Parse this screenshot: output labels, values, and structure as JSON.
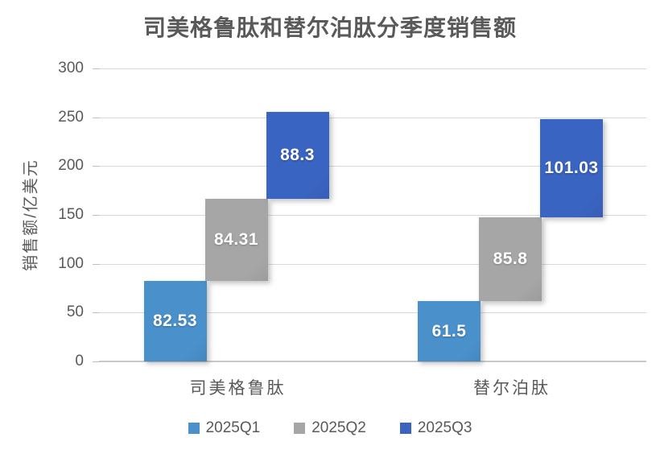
{
  "title": "司美格鲁肽和替尔泊肽分季度销售额",
  "chart_data": {
    "type": "bar",
    "subtype": "waterfall-staircase-stacked",
    "title": "司美格鲁肽和替尔泊肽分季度销售额",
    "categories": [
      "司美格鲁肽",
      "替尔泊肽"
    ],
    "series": [
      {
        "name": "2025Q1",
        "color": "#4a90cb",
        "values": [
          82.53,
          61.5
        ],
        "labels": [
          "82.53",
          "61.5"
        ]
      },
      {
        "name": "2025Q2",
        "color": "#a6a6a6",
        "values": [
          84.31,
          85.8
        ],
        "labels": [
          "84.31",
          "85.8"
        ]
      },
      {
        "name": "2025Q3",
        "color": "#3a64c2",
        "values": [
          88.3,
          101.03
        ],
        "labels": [
          "88.3",
          "101.03"
        ]
      }
    ],
    "xlabel": "",
    "ylabel": "销售额/亿美元",
    "ylim": [
      0,
      300
    ],
    "ytick_step": 50,
    "yticks": [
      "0",
      "50",
      "100",
      "150",
      "200",
      "250",
      "300"
    ],
    "grid": true,
    "legend_position": "bottom"
  },
  "colors": {
    "text": "#595959",
    "gridline": "#d9d9d9",
    "axis_line": "#c9c9c9",
    "background": "#ffffff",
    "data_label": "#ffffff",
    "series_q1": "#4a90cb",
    "series_q2": "#a6a6a6",
    "series_q3": "#3a64c2"
  }
}
